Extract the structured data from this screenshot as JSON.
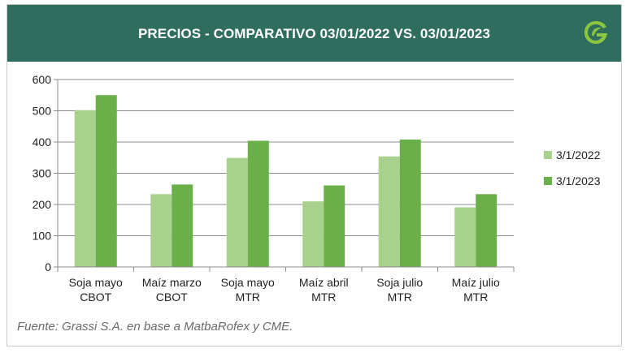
{
  "header": {
    "title": "PRECIOS - COMPARATIVO 03/01/2022 VS. 03/01/2023"
  },
  "logo": {
    "icon": "leaf-g-logo-icon",
    "color": "#8cc63f"
  },
  "colors": {
    "header_bg": "#2f6e5e",
    "series_2022": "#a9d18e",
    "series_2023": "#6aaf47",
    "grid": "#8c8c8c"
  },
  "chart_data": {
    "type": "bar",
    "categories": [
      [
        "Soja mayo",
        "CBOT"
      ],
      [
        "Maíz marzo",
        "CBOT"
      ],
      [
        "Soja mayo",
        "MTR"
      ],
      [
        "Maíz abril",
        "MTR"
      ],
      [
        "Soja julio",
        "MTR"
      ],
      [
        "Maíz julio",
        "MTR"
      ]
    ],
    "series": [
      {
        "name": "3/1/2022",
        "values": [
          502,
          233,
          349,
          210,
          354,
          191
        ]
      },
      {
        "name": "3/1/2023",
        "values": [
          550,
          264,
          404,
          261,
          408,
          233
        ]
      }
    ],
    "ylim": [
      0,
      600
    ],
    "yticks": [
      0,
      100,
      200,
      300,
      400,
      500,
      600
    ],
    "grid": true,
    "legend": "right"
  },
  "source": "Fuente: Grassi S.A.  en base a MatbaRofex y CME."
}
